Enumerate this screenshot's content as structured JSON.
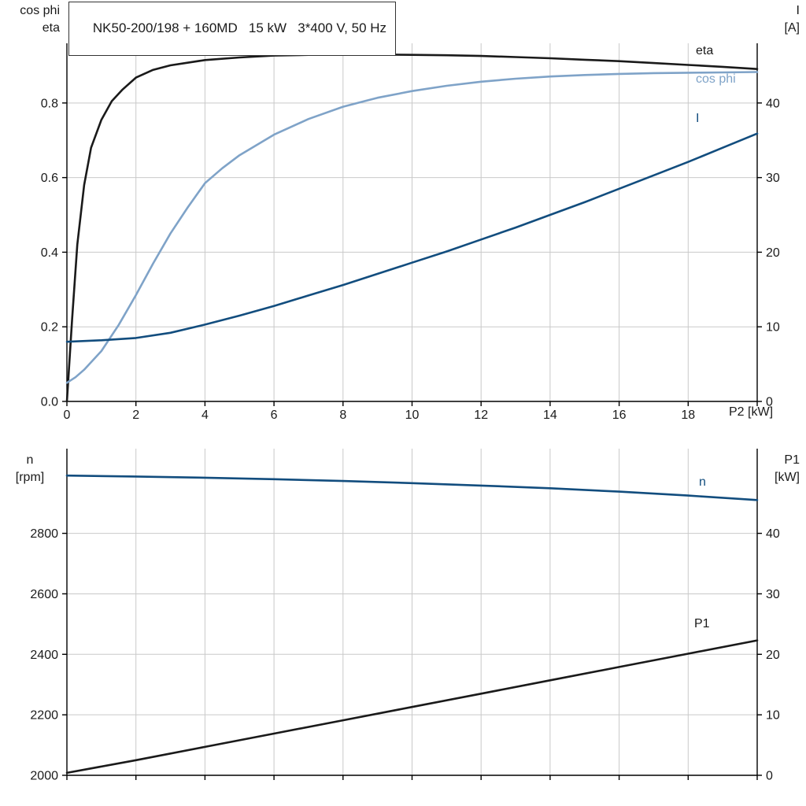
{
  "title": "NK50-200/198 + 160MD   15 kW   3*400 V, 50 Hz",
  "colors": {
    "black": "#1a1a1a",
    "light_blue": "#7fa3c8",
    "dark_blue": "#124d7e",
    "grid": "#c9c9c9",
    "axis": "#000000",
    "background": "#ffffff"
  },
  "chart_data": [
    {
      "id": "motor-electrical-curves",
      "type": "line",
      "x_label": "P2 [kW]",
      "x_min": 0,
      "x_max": 20,
      "x_grid_step": 2,
      "x_tick_labels": [
        "0",
        "2",
        "4",
        "6",
        "8",
        "10",
        "12",
        "14",
        "16",
        "18"
      ],
      "left_axis": {
        "name_line1": "cos phi",
        "name_line2": "eta",
        "min": 0,
        "max": 0.96,
        "tick_labels": [
          "0.0",
          "0.2",
          "0.4",
          "0.6",
          "0.8"
        ]
      },
      "right_axis": {
        "name_line1": "I",
        "name_line2": "[A]",
        "min": 0,
        "max": 48,
        "tick_labels": [
          "0",
          "10",
          "20",
          "30",
          "40"
        ]
      },
      "series": [
        {
          "label": "eta",
          "axis": "left",
          "color_key": "black",
          "x": [
            0,
            0.15,
            0.3,
            0.5,
            0.7,
            1,
            1.3,
            1.6,
            2,
            2.5,
            3,
            4,
            5,
            6,
            7,
            8,
            9,
            10,
            11,
            12,
            13,
            14,
            15,
            16,
            17,
            18,
            19,
            20
          ],
          "values": [
            0,
            0.22,
            0.42,
            0.58,
            0.68,
            0.755,
            0.805,
            0.835,
            0.868,
            0.889,
            0.901,
            0.915,
            0.922,
            0.927,
            0.929,
            0.93,
            0.93,
            0.929,
            0.928,
            0.926,
            0.923,
            0.92,
            0.916,
            0.912,
            0.907,
            0.902,
            0.897,
            0.891
          ]
        },
        {
          "label": "cos phi",
          "axis": "left",
          "color_key": "light_blue",
          "x": [
            0,
            0.25,
            0.5,
            1,
            1.5,
            2,
            2.5,
            3,
            3.5,
            4,
            4.5,
            5,
            6,
            7,
            8,
            9,
            10,
            11,
            12,
            13,
            14,
            15,
            16,
            17,
            18,
            19,
            20
          ],
          "values": [
            0.05,
            0.065,
            0.085,
            0.135,
            0.205,
            0.285,
            0.37,
            0.45,
            0.52,
            0.585,
            0.625,
            0.66,
            0.715,
            0.757,
            0.79,
            0.814,
            0.832,
            0.846,
            0.857,
            0.865,
            0.871,
            0.875,
            0.878,
            0.88,
            0.881,
            0.882,
            0.883
          ]
        },
        {
          "label": "I",
          "axis": "right",
          "color_key": "dark_blue",
          "x": [
            0,
            1,
            2,
            3,
            4,
            5,
            6,
            7,
            8,
            9,
            10,
            11,
            12,
            13,
            14,
            15,
            16,
            17,
            18,
            19,
            20
          ],
          "values": [
            8.0,
            8.2,
            8.5,
            9.2,
            10.3,
            11.5,
            12.8,
            14.2,
            15.6,
            17.1,
            18.6,
            20.1,
            21.7,
            23.3,
            25.0,
            26.7,
            28.5,
            30.3,
            32.1,
            34.0,
            35.9
          ]
        }
      ]
    },
    {
      "id": "speed-power-curves",
      "type": "line",
      "x_label": "",
      "x_min": 0,
      "x_max": 20,
      "x_grid_step": 2,
      "x_tick_labels": [],
      "left_axis": {
        "name_line1": "n",
        "name_line2": "[rpm]",
        "min": 2000,
        "max": 3080,
        "tick_labels": [
          "2000",
          "2200",
          "2400",
          "2600",
          "2800"
        ]
      },
      "right_axis": {
        "name_line1": "P1",
        "name_line2": "[kW]",
        "min": 0,
        "max": 54,
        "tick_labels": [
          "0",
          "10",
          "20",
          "30",
          "40"
        ]
      },
      "series": [
        {
          "label": "n",
          "axis": "left",
          "color_key": "dark_blue",
          "x": [
            0,
            2,
            4,
            6,
            8,
            10,
            12,
            14,
            16,
            18,
            20
          ],
          "values": [
            2991,
            2988,
            2984,
            2979,
            2973,
            2966,
            2958,
            2949,
            2938,
            2925,
            2910
          ]
        },
        {
          "label": "P1",
          "axis": "right",
          "color_key": "black",
          "x": [
            0,
            2,
            4,
            6,
            8,
            10,
            12,
            14,
            16,
            18,
            20
          ],
          "values": [
            0.4,
            2.5,
            4.7,
            6.9,
            9.1,
            11.3,
            13.5,
            15.7,
            17.9,
            20.1,
            22.3
          ]
        }
      ]
    }
  ]
}
